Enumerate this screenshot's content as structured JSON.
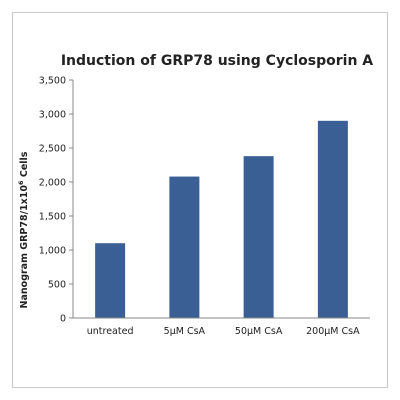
{
  "chart_data": {
    "type": "bar",
    "title": "Induction of GRP78 using Cyclosporin A",
    "xlabel": "",
    "ylabel_main": "Nanogram GRP78/1x10",
    "ylabel_sup": "6",
    "ylabel_tail": " Cells",
    "categories": [
      "untreated",
      "5µM CsA",
      "50µM CsA",
      "200µM CsA"
    ],
    "values": [
      1100,
      2080,
      2380,
      2900
    ],
    "ylim": [
      0,
      3500
    ],
    "yticks": [
      0,
      500,
      1000,
      1500,
      2000,
      2500,
      3000,
      3500
    ],
    "ytick_labels": [
      "0",
      "500",
      "1,000",
      "1,500",
      "2,000",
      "2,500",
      "3,000",
      "3,500"
    ],
    "grid": false,
    "legend": "none",
    "bar_color": "#3a5f94"
  }
}
